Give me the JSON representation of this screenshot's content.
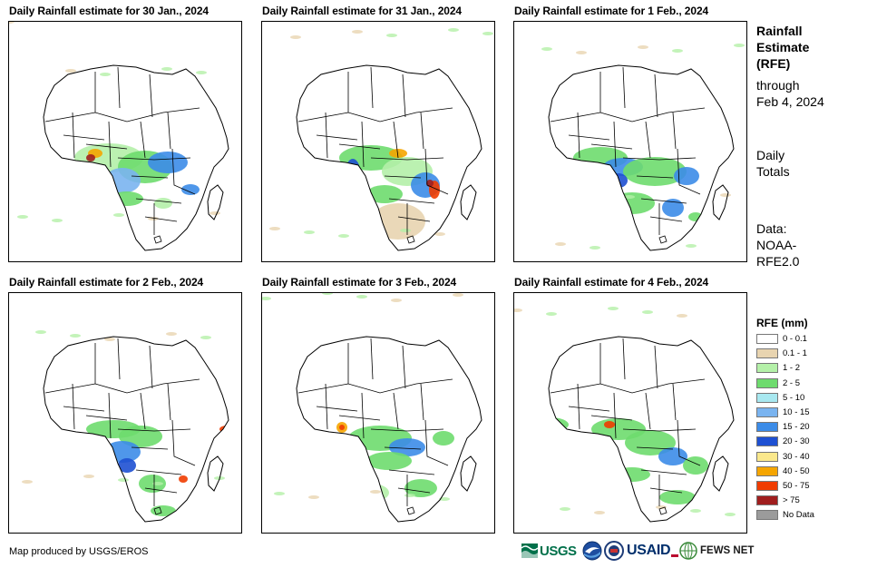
{
  "panels": [
    {
      "title": "Daily Rainfall estimate for 30 Jan., 2024"
    },
    {
      "title": "Daily Rainfall estimate for 31 Jan., 2024"
    },
    {
      "title": "Daily Rainfall estimate for 1 Feb., 2024"
    },
    {
      "title": "Daily Rainfall estimate for 2 Feb., 2024"
    },
    {
      "title": "Daily Rainfall estimate for 3 Feb., 2024"
    },
    {
      "title": "Daily Rainfall estimate for 4 Feb., 2024"
    }
  ],
  "side": {
    "title_line1": "Rainfall",
    "title_line2": "Estimate",
    "title_line3": "(RFE)",
    "through": "through",
    "date": "Feb 4, 2024",
    "daily": "Daily",
    "totals": "Totals",
    "data_label": "Data:",
    "data_line1": "NOAA-",
    "data_line2": "RFE2.0"
  },
  "legend": {
    "title": "RFE (mm)",
    "items": [
      {
        "label": "0 - 0.1",
        "color": "#ffffff"
      },
      {
        "label": "0.1 - 1",
        "color": "#e8d4b0"
      },
      {
        "label": "1 - 2",
        "color": "#b4f0a8"
      },
      {
        "label": "2 - 5",
        "color": "#6edb6e"
      },
      {
        "label": "5 - 10",
        "color": "#a8e8f0"
      },
      {
        "label": "10 - 15",
        "color": "#7ab4f0"
      },
      {
        "label": "15 - 20",
        "color": "#3c8ce8"
      },
      {
        "label": "20 - 30",
        "color": "#1e50d2"
      },
      {
        "label": "30 - 40",
        "color": "#fae88c"
      },
      {
        "label": "40 - 50",
        "color": "#f5a500"
      },
      {
        "label": "50 - 75",
        "color": "#f03c00"
      },
      {
        "label": "> 75",
        "color": "#a01e1e"
      },
      {
        "label": "No Data",
        "color": "#9b9b9b"
      }
    ]
  },
  "footer": {
    "credit": "Map produced by USGS/EROS",
    "logo_usgs": "USGS",
    "logo_usaid": "USAID",
    "logo_fews": "FEWS NET"
  }
}
